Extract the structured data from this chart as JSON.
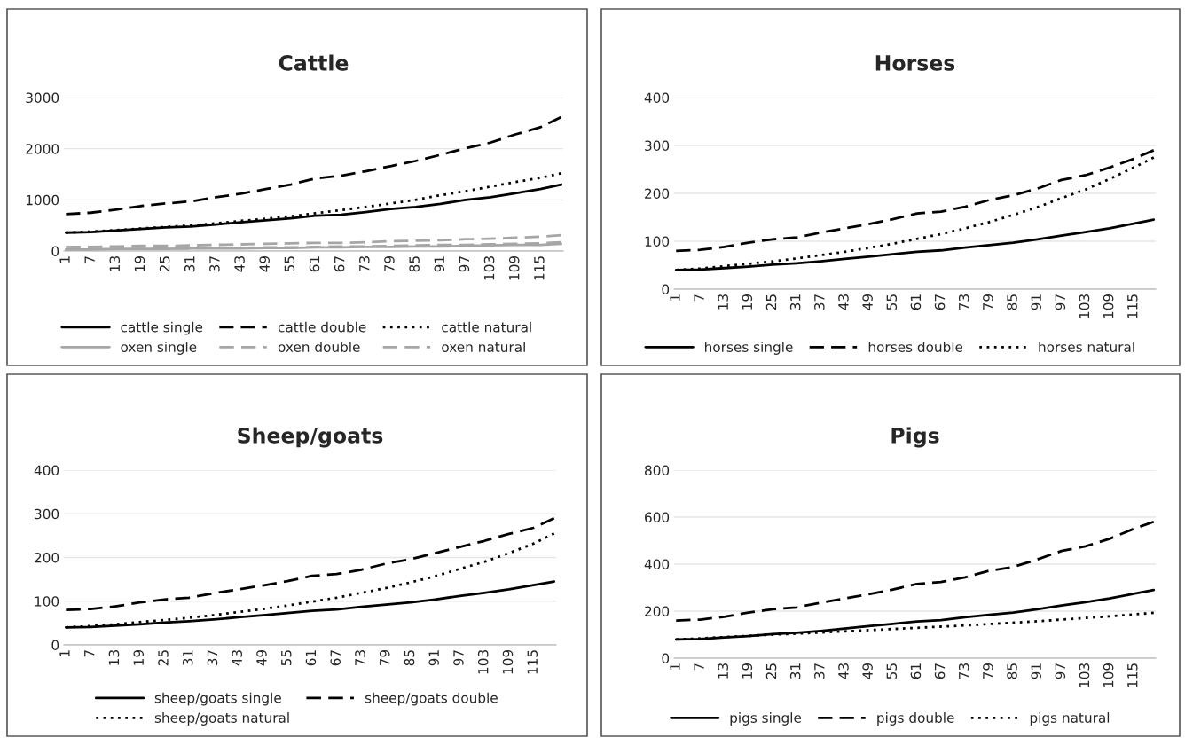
{
  "chart_data": [
    {
      "type": "line",
      "title": "Cattle",
      "xlim": [
        0.5,
        120.5
      ],
      "xticks": [
        1,
        7,
        13,
        19,
        25,
        31,
        37,
        43,
        49,
        55,
        61,
        67,
        73,
        79,
        85,
        91,
        97,
        103,
        109,
        115
      ],
      "ylim": [
        0,
        3000
      ],
      "yticks": [
        0,
        1000,
        2000,
        3000
      ],
      "grid": "y",
      "legend": "bottom",
      "marker": "none",
      "x": [
        1,
        7,
        13,
        19,
        25,
        31,
        37,
        43,
        49,
        55,
        61,
        67,
        73,
        79,
        85,
        91,
        97,
        103,
        109,
        115,
        120
      ],
      "series": [
        {
          "name": "cattle single",
          "color": "#000000",
          "line_style": "solid",
          "values": [
            360,
            370,
            400,
            430,
            460,
            480,
            520,
            560,
            600,
            640,
            690,
            710,
            760,
            820,
            860,
            920,
            1000,
            1050,
            1130,
            1210,
            1300
          ]
        },
        {
          "name": "cattle double",
          "color": "#000000",
          "line_style": "dashed",
          "values": [
            720,
            750,
            810,
            880,
            930,
            970,
            1050,
            1120,
            1210,
            1300,
            1420,
            1470,
            1560,
            1660,
            1760,
            1880,
            2010,
            2120,
            2280,
            2420,
            2620
          ]
        },
        {
          "name": "cattle natural",
          "color": "#000000",
          "line_style": "dotted",
          "values": [
            360,
            380,
            410,
            440,
            470,
            500,
            540,
            590,
            630,
            680,
            740,
            800,
            860,
            930,
            1000,
            1090,
            1170,
            1260,
            1350,
            1430,
            1520
          ]
        },
        {
          "name": "oxen single",
          "color": "#a6a6a6",
          "line_style": "solid",
          "values": [
            30,
            30,
            40,
            40,
            40,
            50,
            50,
            50,
            60,
            60,
            70,
            70,
            80,
            80,
            90,
            90,
            100,
            110,
            120,
            120,
            140
          ]
        },
        {
          "name": "oxen double",
          "color": "#a6a6a6",
          "line_style": "dashed",
          "values": [
            80,
            80,
            90,
            100,
            100,
            110,
            120,
            130,
            140,
            150,
            160,
            160,
            170,
            190,
            200,
            210,
            230,
            240,
            260,
            280,
            310
          ]
        },
        {
          "name": "oxen natural",
          "color": "#a6a6a6",
          "line_style": "dashed",
          "values": [
            40,
            40,
            40,
            40,
            50,
            50,
            60,
            60,
            70,
            70,
            80,
            90,
            90,
            100,
            110,
            120,
            120,
            130,
            140,
            150,
            170
          ]
        }
      ]
    },
    {
      "type": "line",
      "title": "Horses",
      "xlim": [
        0.5,
        120.5
      ],
      "xticks": [
        1,
        7,
        13,
        19,
        25,
        31,
        37,
        43,
        49,
        55,
        61,
        67,
        73,
        79,
        85,
        91,
        97,
        103,
        109,
        115
      ],
      "ylim": [
        0,
        400
      ],
      "yticks": [
        0,
        100,
        200,
        300,
        400
      ],
      "grid": "y",
      "legend": "bottom",
      "marker": "none",
      "x": [
        1,
        7,
        13,
        19,
        25,
        31,
        37,
        43,
        49,
        55,
        61,
        67,
        73,
        79,
        85,
        91,
        97,
        103,
        109,
        115,
        120
      ],
      "series": [
        {
          "name": "horses single",
          "color": "#000000",
          "line_style": "solid",
          "values": [
            40,
            41,
            44,
            47,
            51,
            54,
            58,
            63,
            68,
            73,
            78,
            81,
            87,
            92,
            97,
            104,
            112,
            119,
            127,
            137,
            145
          ]
        },
        {
          "name": "horses double",
          "color": "#000000",
          "line_style": "dashed",
          "values": [
            80,
            82,
            88,
            97,
            104,
            108,
            118,
            127,
            136,
            146,
            158,
            162,
            172,
            186,
            196,
            210,
            228,
            238,
            254,
            272,
            290
          ]
        },
        {
          "name": "horses natural",
          "color": "#000000",
          "line_style": "dotted",
          "values": [
            40,
            43,
            48,
            53,
            58,
            64,
            71,
            78,
            86,
            95,
            105,
            115,
            127,
            140,
            155,
            171,
            190,
            208,
            230,
            254,
            275
          ]
        }
      ]
    },
    {
      "type": "line",
      "title": "Sheep/goats",
      "xlim": [
        0.5,
        120.5
      ],
      "xticks": [
        1,
        7,
        13,
        19,
        25,
        31,
        37,
        43,
        49,
        55,
        61,
        67,
        73,
        79,
        85,
        91,
        97,
        103,
        109,
        115
      ],
      "ylim": [
        0,
        400
      ],
      "yticks": [
        0,
        100,
        200,
        300,
        400
      ],
      "grid": "y",
      "legend": "bottom",
      "marker": "none",
      "x": [
        1,
        7,
        13,
        19,
        25,
        31,
        37,
        43,
        49,
        55,
        61,
        67,
        73,
        79,
        85,
        91,
        97,
        103,
        109,
        115,
        120
      ],
      "series": [
        {
          "name": "sheep/goats single",
          "color": "#000000",
          "line_style": "solid",
          "values": [
            40,
            41,
            44,
            47,
            51,
            54,
            58,
            63,
            68,
            73,
            78,
            81,
            87,
            92,
            97,
            104,
            112,
            119,
            127,
            137,
            145
          ]
        },
        {
          "name": "sheep/goats double",
          "color": "#000000",
          "line_style": "dashed",
          "values": [
            80,
            82,
            88,
            97,
            104,
            108,
            118,
            127,
            136,
            146,
            158,
            162,
            172,
            186,
            196,
            210,
            224,
            238,
            254,
            268,
            290
          ]
        },
        {
          "name": "sheep/goats natural",
          "color": "#000000",
          "line_style": "dotted",
          "values": [
            40,
            43,
            47,
            52,
            57,
            62,
            68,
            75,
            82,
            90,
            99,
            108,
            119,
            130,
            143,
            157,
            174,
            190,
            210,
            232,
            255
          ]
        }
      ]
    },
    {
      "type": "line",
      "title": "Pigs",
      "xlim": [
        0.5,
        120.5
      ],
      "xticks": [
        1,
        7,
        13,
        19,
        25,
        31,
        37,
        43,
        49,
        55,
        61,
        67,
        73,
        79,
        85,
        91,
        97,
        103,
        109,
        115
      ],
      "ylim": [
        0,
        800
      ],
      "yticks": [
        0,
        200,
        400,
        600,
        800
      ],
      "grid": "y",
      "legend": "bottom",
      "marker": "none",
      "x": [
        1,
        7,
        13,
        19,
        25,
        31,
        37,
        43,
        49,
        55,
        61,
        67,
        73,
        79,
        85,
        91,
        97,
        103,
        109,
        115,
        120
      ],
      "series": [
        {
          "name": "pigs single",
          "color": "#000000",
          "line_style": "solid",
          "values": [
            80,
            82,
            88,
            94,
            102,
            108,
            116,
            126,
            136,
            146,
            156,
            162,
            174,
            184,
            194,
            208,
            224,
            238,
            254,
            274,
            290
          ]
        },
        {
          "name": "pigs double",
          "color": "#000000",
          "line_style": "dashed",
          "values": [
            160,
            164,
            176,
            194,
            208,
            216,
            236,
            254,
            272,
            292,
            316,
            324,
            344,
            372,
            388,
            420,
            456,
            476,
            508,
            550,
            580
          ]
        },
        {
          "name": "pigs natural",
          "color": "#000000",
          "line_style": "dotted",
          "values": [
            80,
            84,
            90,
            95,
            100,
            104,
            109,
            114,
            119,
            124,
            129,
            134,
            139,
            145,
            151,
            157,
            164,
            171,
            178,
            186,
            193
          ]
        }
      ]
    }
  ]
}
